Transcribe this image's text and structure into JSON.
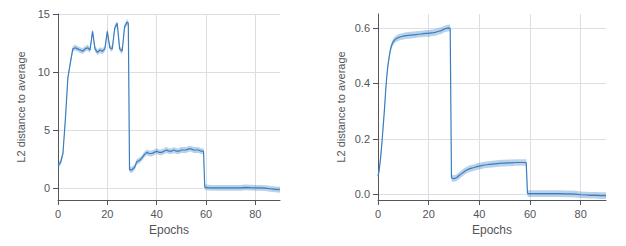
{
  "chart_data": [
    {
      "type": "line",
      "color": "#3a7ebf",
      "xlabel": "Epochs",
      "ylabel": "L2 distance to average",
      "xlim": [
        0,
        90
      ],
      "xticks": [
        0,
        20,
        40,
        60,
        80
      ],
      "ylim": [
        -1,
        15
      ],
      "yticks": [
        0,
        5,
        10,
        15
      ],
      "grid": true,
      "std": 0.25,
      "x": [
        0,
        1,
        2,
        3,
        4,
        5,
        6,
        7,
        8,
        9,
        10,
        11,
        12,
        13,
        14,
        15,
        16,
        17,
        18,
        19,
        20,
        21,
        22,
        23,
        24,
        25,
        26,
        27,
        28,
        28.5,
        29,
        29.5,
        30,
        31,
        32,
        33,
        34,
        35,
        36,
        37,
        38,
        39,
        40,
        41,
        42,
        43,
        44,
        45,
        46,
        47,
        48,
        49,
        50,
        51,
        52,
        53,
        54,
        55,
        56,
        57,
        58,
        59,
        59.5,
        60,
        61,
        62,
        64,
        66,
        68,
        70,
        72,
        74,
        76,
        78,
        80,
        82,
        84,
        86,
        88,
        90
      ],
      "values": [
        2.0,
        2.2,
        3.0,
        6.0,
        9.5,
        10.8,
        12.0,
        12.1,
        12.0,
        11.9,
        11.8,
        12.0,
        12.1,
        11.9,
        13.5,
        12.0,
        11.7,
        11.9,
        11.8,
        12.0,
        13.5,
        12.1,
        12.0,
        13.8,
        14.2,
        12.0,
        11.8,
        13.9,
        14.3,
        14.2,
        1.6,
        1.6,
        1.6,
        1.8,
        2.3,
        2.4,
        2.6,
        2.9,
        3.1,
        3.0,
        3.0,
        3.1,
        3.2,
        3.1,
        3.1,
        3.2,
        3.3,
        3.2,
        3.2,
        3.3,
        3.2,
        3.2,
        3.3,
        3.3,
        3.3,
        3.4,
        3.4,
        3.3,
        3.3,
        3.3,
        3.2,
        3.2,
        0.1,
        0.08,
        0.06,
        0.05,
        0.05,
        0.05,
        0.05,
        0.05,
        0.05,
        0.05,
        0.08,
        0.06,
        0.05,
        0.04,
        0.02,
        -0.03,
        -0.08,
        -0.12
      ]
    },
    {
      "type": "line",
      "color": "#3a7ebf",
      "xlabel": "Epochs",
      "ylabel": "L2 distance to average",
      "xlim": [
        0,
        90
      ],
      "xticks": [
        0,
        20,
        40,
        60,
        80
      ],
      "ylim": [
        -0.02,
        0.65
      ],
      "yticks": [
        {
          "value": 0.0,
          "label": "0.0"
        },
        0.2,
        0.4,
        0.6
      ],
      "grid": true,
      "std": 0.012,
      "x": [
        0,
        0.5,
        1,
        1.5,
        2,
        2.5,
        3,
        3.5,
        4,
        4.5,
        5,
        5.5,
        6,
        6.5,
        7,
        8,
        9,
        10,
        11,
        12,
        13,
        14,
        15,
        16,
        17,
        18,
        19,
        20,
        21,
        22,
        23,
        24,
        25,
        26,
        27,
        28,
        28.5,
        29,
        29.5,
        30,
        31,
        32,
        33,
        34,
        35,
        36,
        37,
        38,
        39,
        40,
        41,
        42,
        43,
        44,
        45,
        46,
        47,
        48,
        49,
        50,
        51,
        52,
        53,
        54,
        55,
        56,
        57,
        58,
        58.5,
        59,
        59.5,
        60,
        62,
        64,
        66,
        68,
        70,
        72,
        74,
        76,
        78,
        80,
        82,
        84,
        86,
        88,
        90
      ],
      "values": [
        0.065,
        0.09,
        0.13,
        0.18,
        0.24,
        0.3,
        0.37,
        0.43,
        0.47,
        0.5,
        0.525,
        0.54,
        0.55,
        0.555,
        0.56,
        0.565,
        0.568,
        0.57,
        0.572,
        0.573,
        0.574,
        0.575,
        0.576,
        0.577,
        0.578,
        0.579,
        0.58,
        0.58,
        0.582,
        0.583,
        0.585,
        0.588,
        0.59,
        0.595,
        0.598,
        0.6,
        0.598,
        0.06,
        0.058,
        0.057,
        0.06,
        0.068,
        0.075,
        0.082,
        0.088,
        0.092,
        0.095,
        0.097,
        0.1,
        0.102,
        0.104,
        0.106,
        0.107,
        0.108,
        0.109,
        0.11,
        0.111,
        0.112,
        0.113,
        0.113,
        0.114,
        0.114,
        0.114,
        0.115,
        0.115,
        0.115,
        0.115,
        0.115,
        0.115,
        0.004,
        0.003,
        0.003,
        0.003,
        0.003,
        0.003,
        0.003,
        0.003,
        0.003,
        0.002,
        0.002,
        0.001,
        -0.001,
        -0.002,
        -0.003,
        -0.003,
        -0.004,
        -0.004
      ]
    }
  ]
}
